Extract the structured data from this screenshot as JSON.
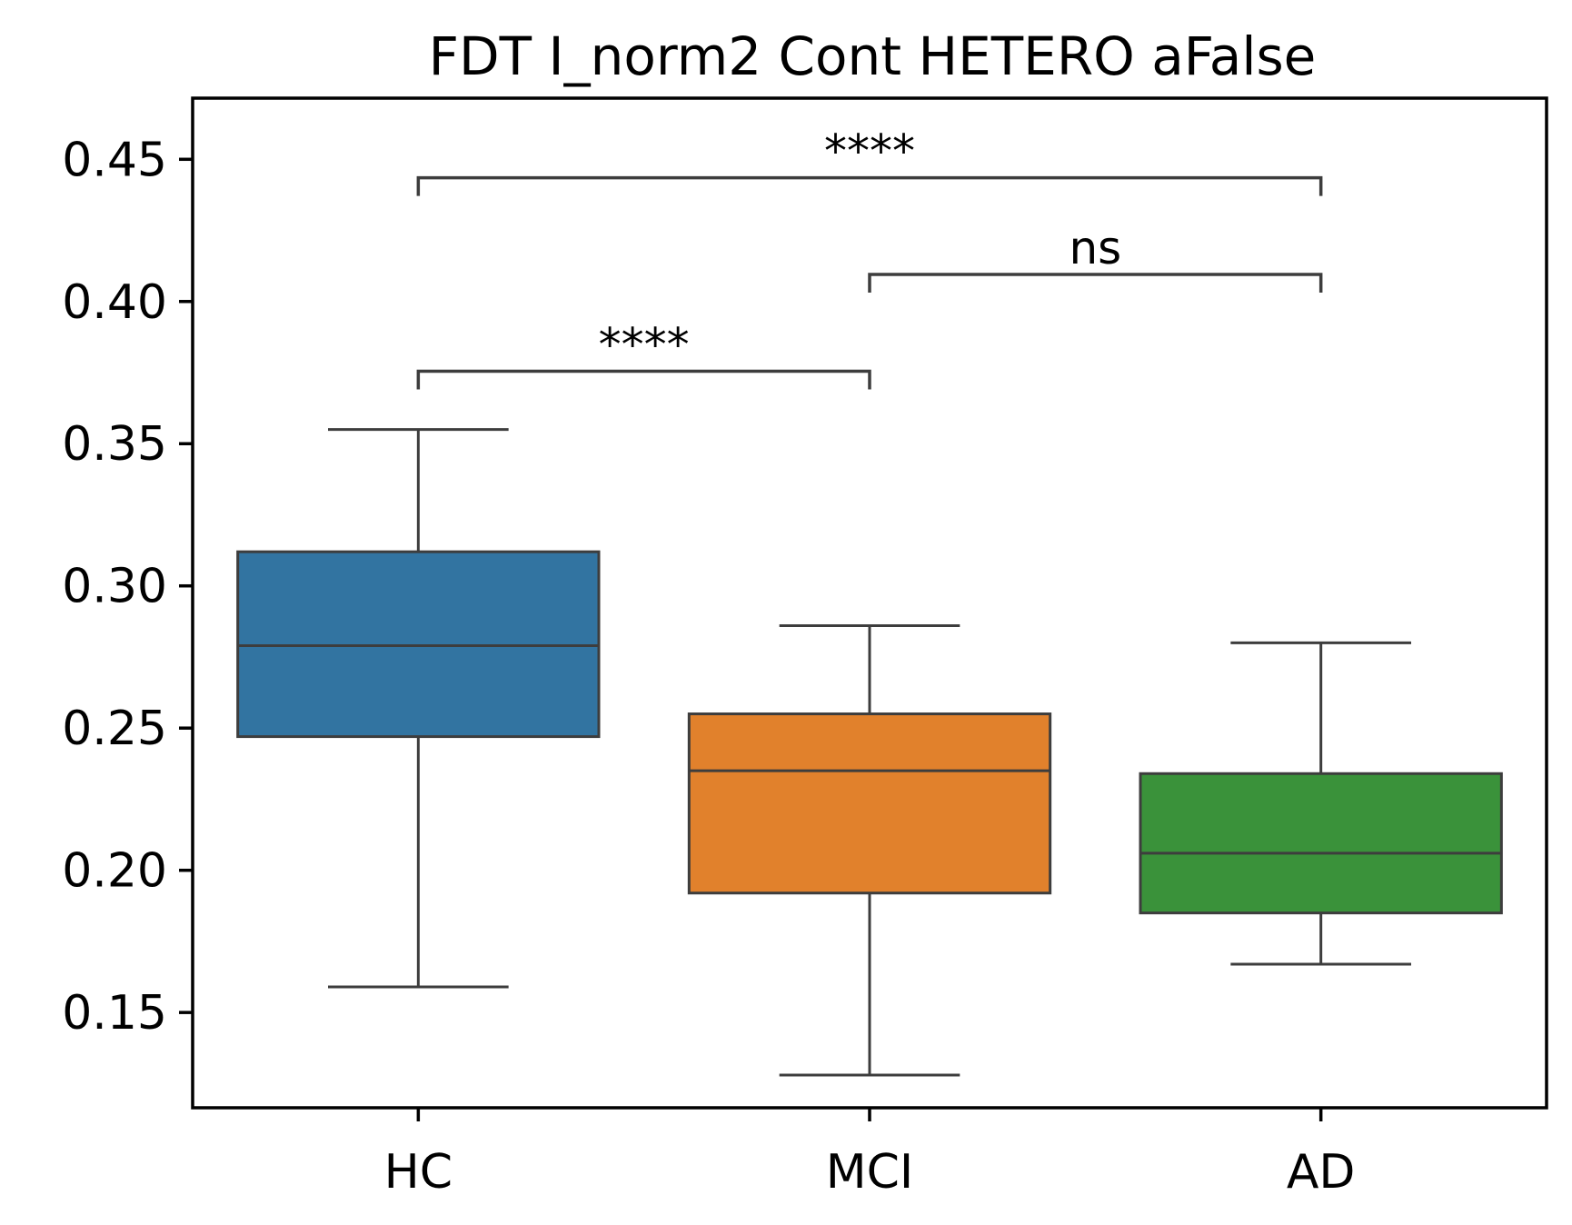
{
  "chart_data": {
    "type": "box",
    "title": "FDT I_norm2 Cont HETERO aFalse",
    "xlabel": "",
    "ylabel": "",
    "ylim": [
      0.1165,
      0.4715
    ],
    "yticks": [
      0.15,
      0.2,
      0.25,
      0.3,
      0.35,
      0.4,
      0.45
    ],
    "ytick_labels": [
      "0.15",
      "0.20",
      "0.25",
      "0.30",
      "0.35",
      "0.40",
      "0.45"
    ],
    "categories": [
      "HC",
      "MCI",
      "AD"
    ],
    "colors": [
      "#3274a1",
      "#e1812c",
      "#3a923a"
    ],
    "edge_color": "#3d3d3d",
    "grid": false,
    "boxes": [
      {
        "label": "HC",
        "whisker_low": 0.159,
        "q1": 0.247,
        "median": 0.279,
        "q3": 0.312,
        "whisker_high": 0.355
      },
      {
        "label": "MCI",
        "whisker_low": 0.128,
        "q1": 0.192,
        "median": 0.235,
        "q3": 0.255,
        "whisker_high": 0.286
      },
      {
        "label": "AD",
        "whisker_low": 0.167,
        "q1": 0.185,
        "median": 0.206,
        "q3": 0.234,
        "whisker_high": 0.28
      }
    ],
    "annotations": [
      {
        "from": 0,
        "to": 1,
        "y": 0.3755,
        "label": "****"
      },
      {
        "from": 1,
        "to": 2,
        "y": 0.4095,
        "label": "ns"
      },
      {
        "from": 0,
        "to": 2,
        "y": 0.4435,
        "label": "****"
      }
    ]
  }
}
